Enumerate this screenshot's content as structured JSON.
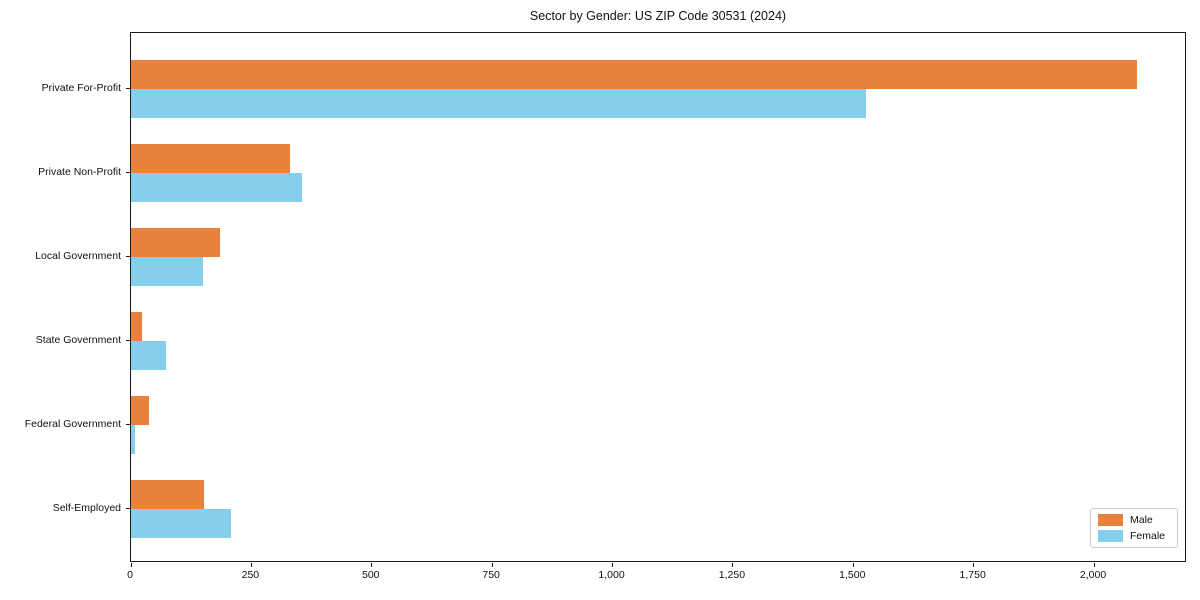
{
  "chart_data": {
    "type": "bar",
    "orientation": "horizontal",
    "title": "Sector by Gender: US ZIP Code 30531 (2024)",
    "categories": [
      "Private For-Profit",
      "Private Non-Profit",
      "Local Government",
      "State Government",
      "Federal Government",
      "Self-Employed"
    ],
    "series": [
      {
        "name": "Male",
        "color": "#e8803e",
        "values": [
          2090,
          330,
          185,
          22,
          37,
          151
        ]
      },
      {
        "name": "Female",
        "color": "#87ceeb",
        "values": [
          1526,
          356,
          150,
          72,
          9,
          207
        ]
      }
    ],
    "xlabel": "",
    "ylabel": "",
    "xlim": [
      0,
      2193
    ],
    "xticks": [
      0,
      250,
      500,
      750,
      1000,
      1250,
      1500,
      1750,
      2000
    ],
    "xtick_labels": [
      "0",
      "250",
      "500",
      "750",
      "1,000",
      "1,250",
      "1,500",
      "1,750",
      "2,000"
    ],
    "grid": false,
    "legend_position": "lower right"
  },
  "styles": {
    "spine_color": "#1a1a1a",
    "text_color": "#111111",
    "legend_border_color": "#cccccc",
    "background": "#ffffff"
  }
}
